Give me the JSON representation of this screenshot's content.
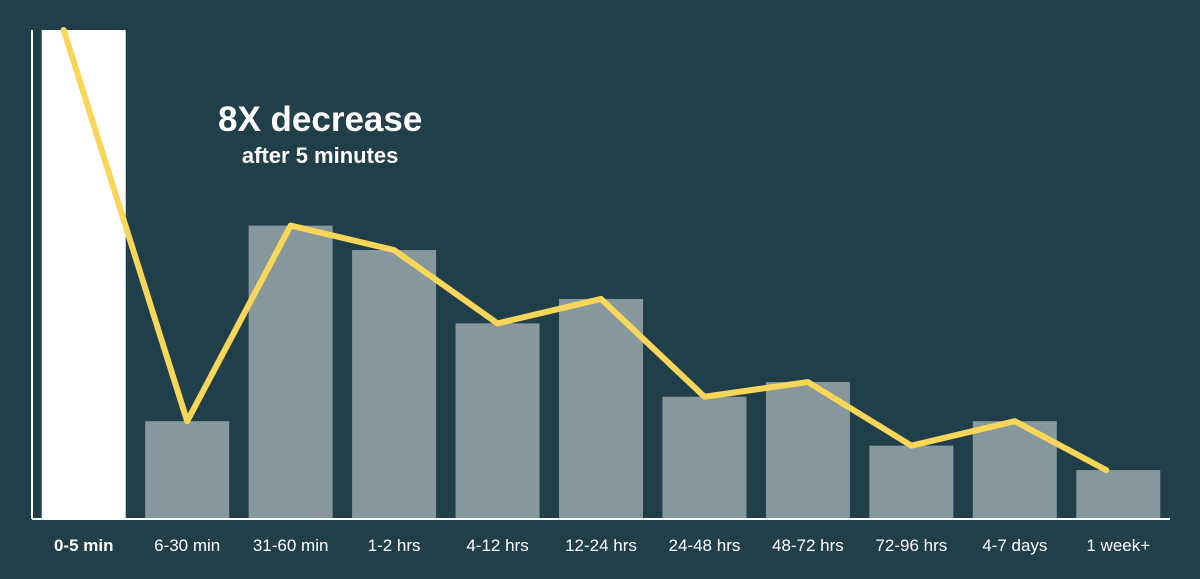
{
  "chart_data": {
    "type": "bar",
    "title": "",
    "xlabel": "",
    "ylabel": "",
    "ylim": [
      0,
      100
    ],
    "categories": [
      "0-5 min",
      "6-30 min",
      "31-60 min",
      "1-2 hrs",
      "4-12 hrs",
      "12-24 hrs",
      "24-48 hrs",
      "48-72 hrs",
      "72-96 hrs",
      "4-7 days",
      "1 week+"
    ],
    "highlight_category": "0-5 min",
    "values": [
      100,
      20,
      60,
      55,
      40,
      45,
      25,
      28,
      15,
      20,
      10
    ],
    "line_values": [
      100,
      20,
      60,
      55,
      40,
      45,
      25,
      28,
      15,
      20,
      10
    ],
    "annotation": {
      "title": "8X decrease",
      "subtitle": "after 5 minutes"
    },
    "colors": {
      "background": "#213f4b",
      "bar": "#87989d",
      "highlight_bar": "#ffffff",
      "line": "#f7d659",
      "axis": "#ffffff"
    },
    "grid": false,
    "legend": "none"
  }
}
